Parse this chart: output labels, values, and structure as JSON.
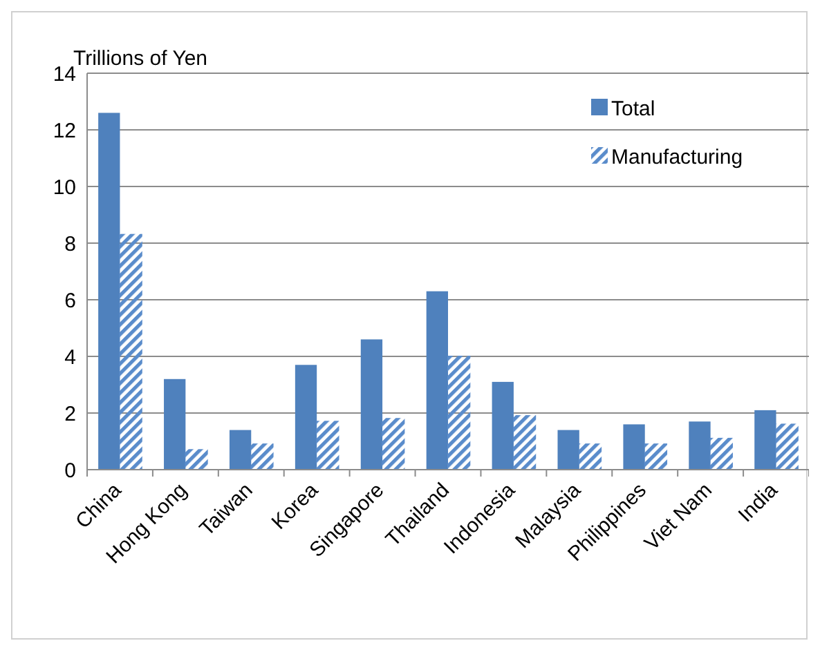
{
  "chart_data": {
    "type": "bar",
    "ylabel": "Trillions of Yen",
    "categories": [
      "China",
      "Hong Kong",
      "Taiwan",
      "Korea",
      "Singapore",
      "Thailand",
      "Indonesia",
      "Malaysia",
      "Philippines",
      "Viet Nam",
      "India"
    ],
    "series": [
      {
        "name": "Total",
        "color": "#4f81bd",
        "values": [
          12.6,
          3.2,
          1.4,
          3.7,
          4.6,
          6.3,
          3.1,
          1.4,
          1.6,
          1.7,
          2.1
        ]
      },
      {
        "name": "Manufacturing",
        "color": "#5a8ccb",
        "values": [
          8.3,
          0.7,
          0.9,
          1.7,
          1.8,
          4.0,
          1.9,
          0.9,
          0.9,
          1.1,
          1.6
        ]
      }
    ],
    "ylim": [
      0,
      14
    ],
    "yticks": [
      0,
      2,
      4,
      6,
      8,
      10,
      12,
      14
    ],
    "grid": "y",
    "legend": "top right"
  }
}
